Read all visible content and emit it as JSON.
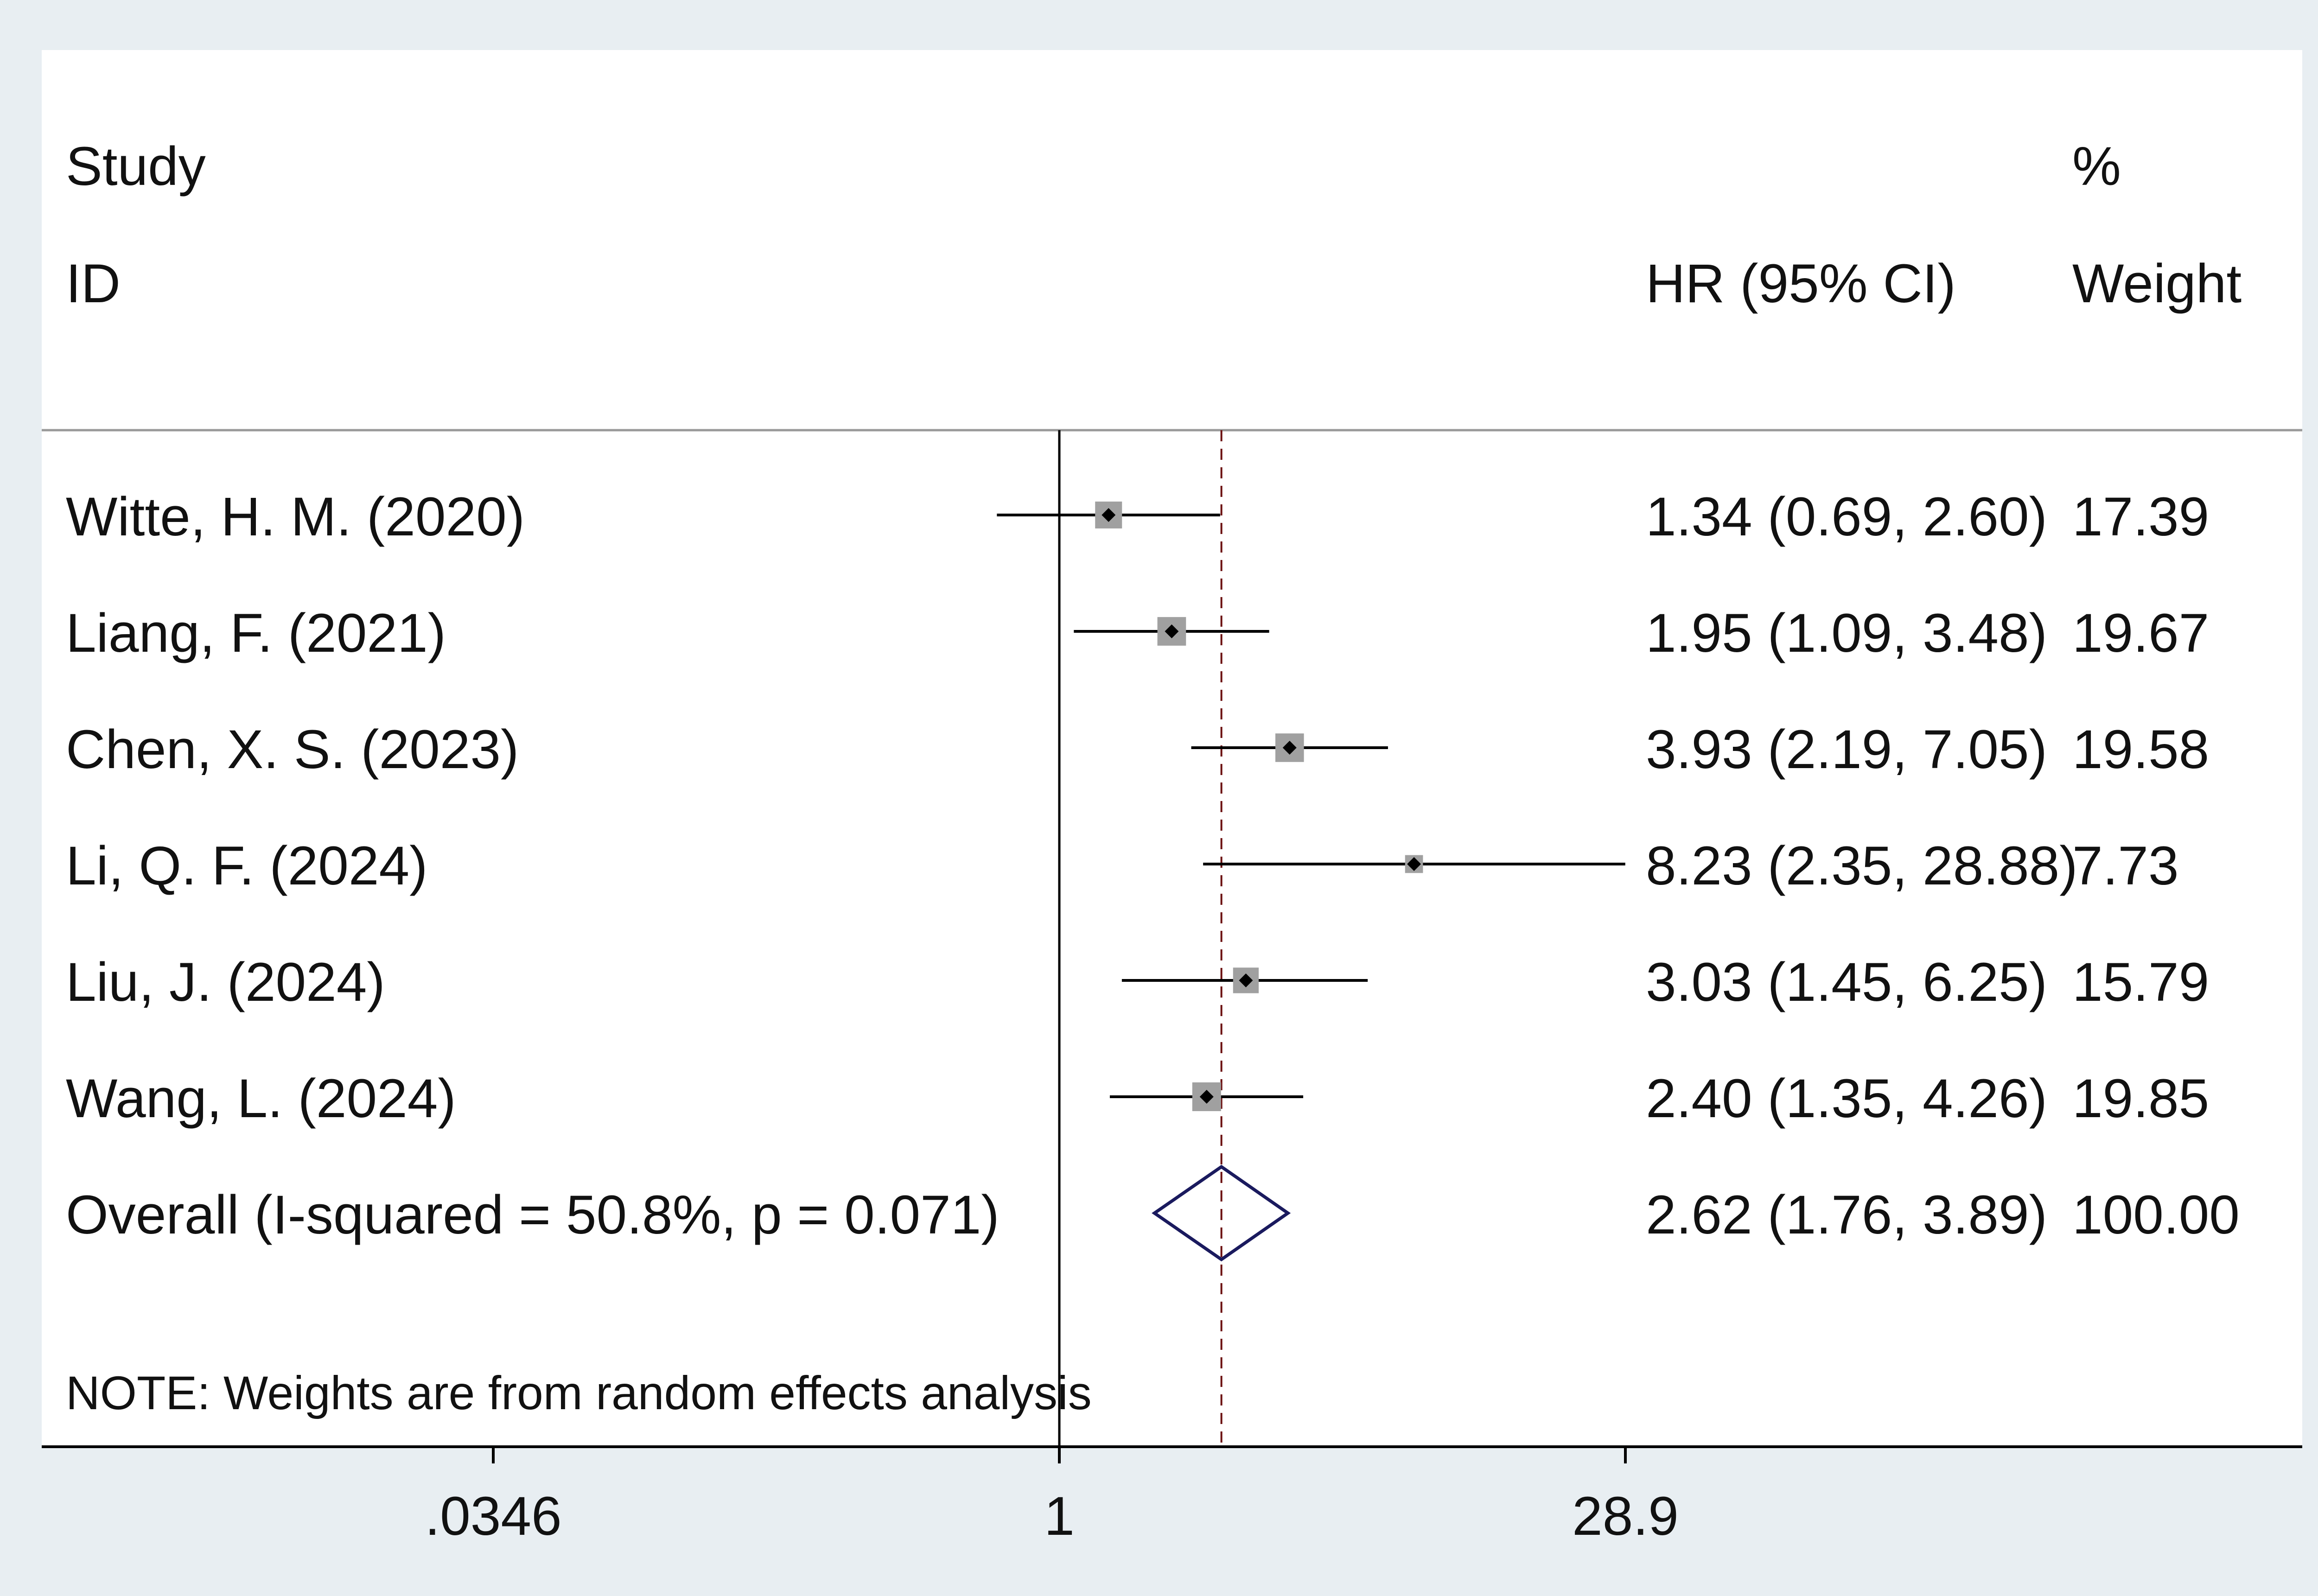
{
  "colors": {
    "outer_background": "#e8eef2",
    "plot_background": "#ffffff",
    "line": "#000000",
    "reference_line": "#6b1010",
    "box_fill": "#a0a0a0",
    "diamond": "#1a1a5e"
  },
  "header": {
    "study_line1": "Study",
    "study_line2": "ID",
    "effect_header": "HR (95% CI)",
    "weight_line1": "%",
    "weight_line2": "Weight"
  },
  "note": "NOTE: Weights are from random effects analysis",
  "chart_data": {
    "type": "forest",
    "x_scale": "log",
    "xlim": [
      0.0346,
      28.9
    ],
    "x_ticks": [
      {
        "value": 0.0346,
        "label": ".0346"
      },
      {
        "value": 1,
        "label": "1"
      },
      {
        "value": 28.9,
        "label": "28.9"
      }
    ],
    "null_line": 1,
    "studies": [
      {
        "label": "Witte, H. M. (2020)",
        "hr": 1.34,
        "lower": 0.69,
        "upper": 2.6,
        "hr_text": "1.34 (0.69, 2.60)",
        "weight": 17.39,
        "weight_text": "17.39"
      },
      {
        "label": "Liang, F. (2021)",
        "hr": 1.95,
        "lower": 1.09,
        "upper": 3.48,
        "hr_text": "1.95 (1.09, 3.48)",
        "weight": 19.67,
        "weight_text": "19.67"
      },
      {
        "label": "Chen, X. S. (2023)",
        "hr": 3.93,
        "lower": 2.19,
        "upper": 7.05,
        "hr_text": "3.93 (2.19, 7.05)",
        "weight": 19.58,
        "weight_text": "19.58"
      },
      {
        "label": "Li, Q. F. (2024)",
        "hr": 8.23,
        "lower": 2.35,
        "upper": 28.88,
        "hr_text": "8.23 (2.35, 28.88)",
        "weight": 7.73,
        "weight_text": "7.73"
      },
      {
        "label": "Liu, J. (2024)",
        "hr": 3.03,
        "lower": 1.45,
        "upper": 6.25,
        "hr_text": "3.03 (1.45, 6.25)",
        "weight": 15.79,
        "weight_text": "15.79"
      },
      {
        "label": "Wang, L. (2024)",
        "hr": 2.4,
        "lower": 1.35,
        "upper": 4.26,
        "hr_text": "2.40 (1.35, 4.26)",
        "weight": 19.85,
        "weight_text": "19.85"
      }
    ],
    "overall": {
      "label": "Overall  (I-squared = 50.8%, p = 0.071)",
      "hr": 2.62,
      "lower": 1.76,
      "upper": 3.89,
      "hr_text": "2.62 (1.76, 3.89)",
      "weight": 100.0,
      "weight_text": "100.00"
    }
  }
}
